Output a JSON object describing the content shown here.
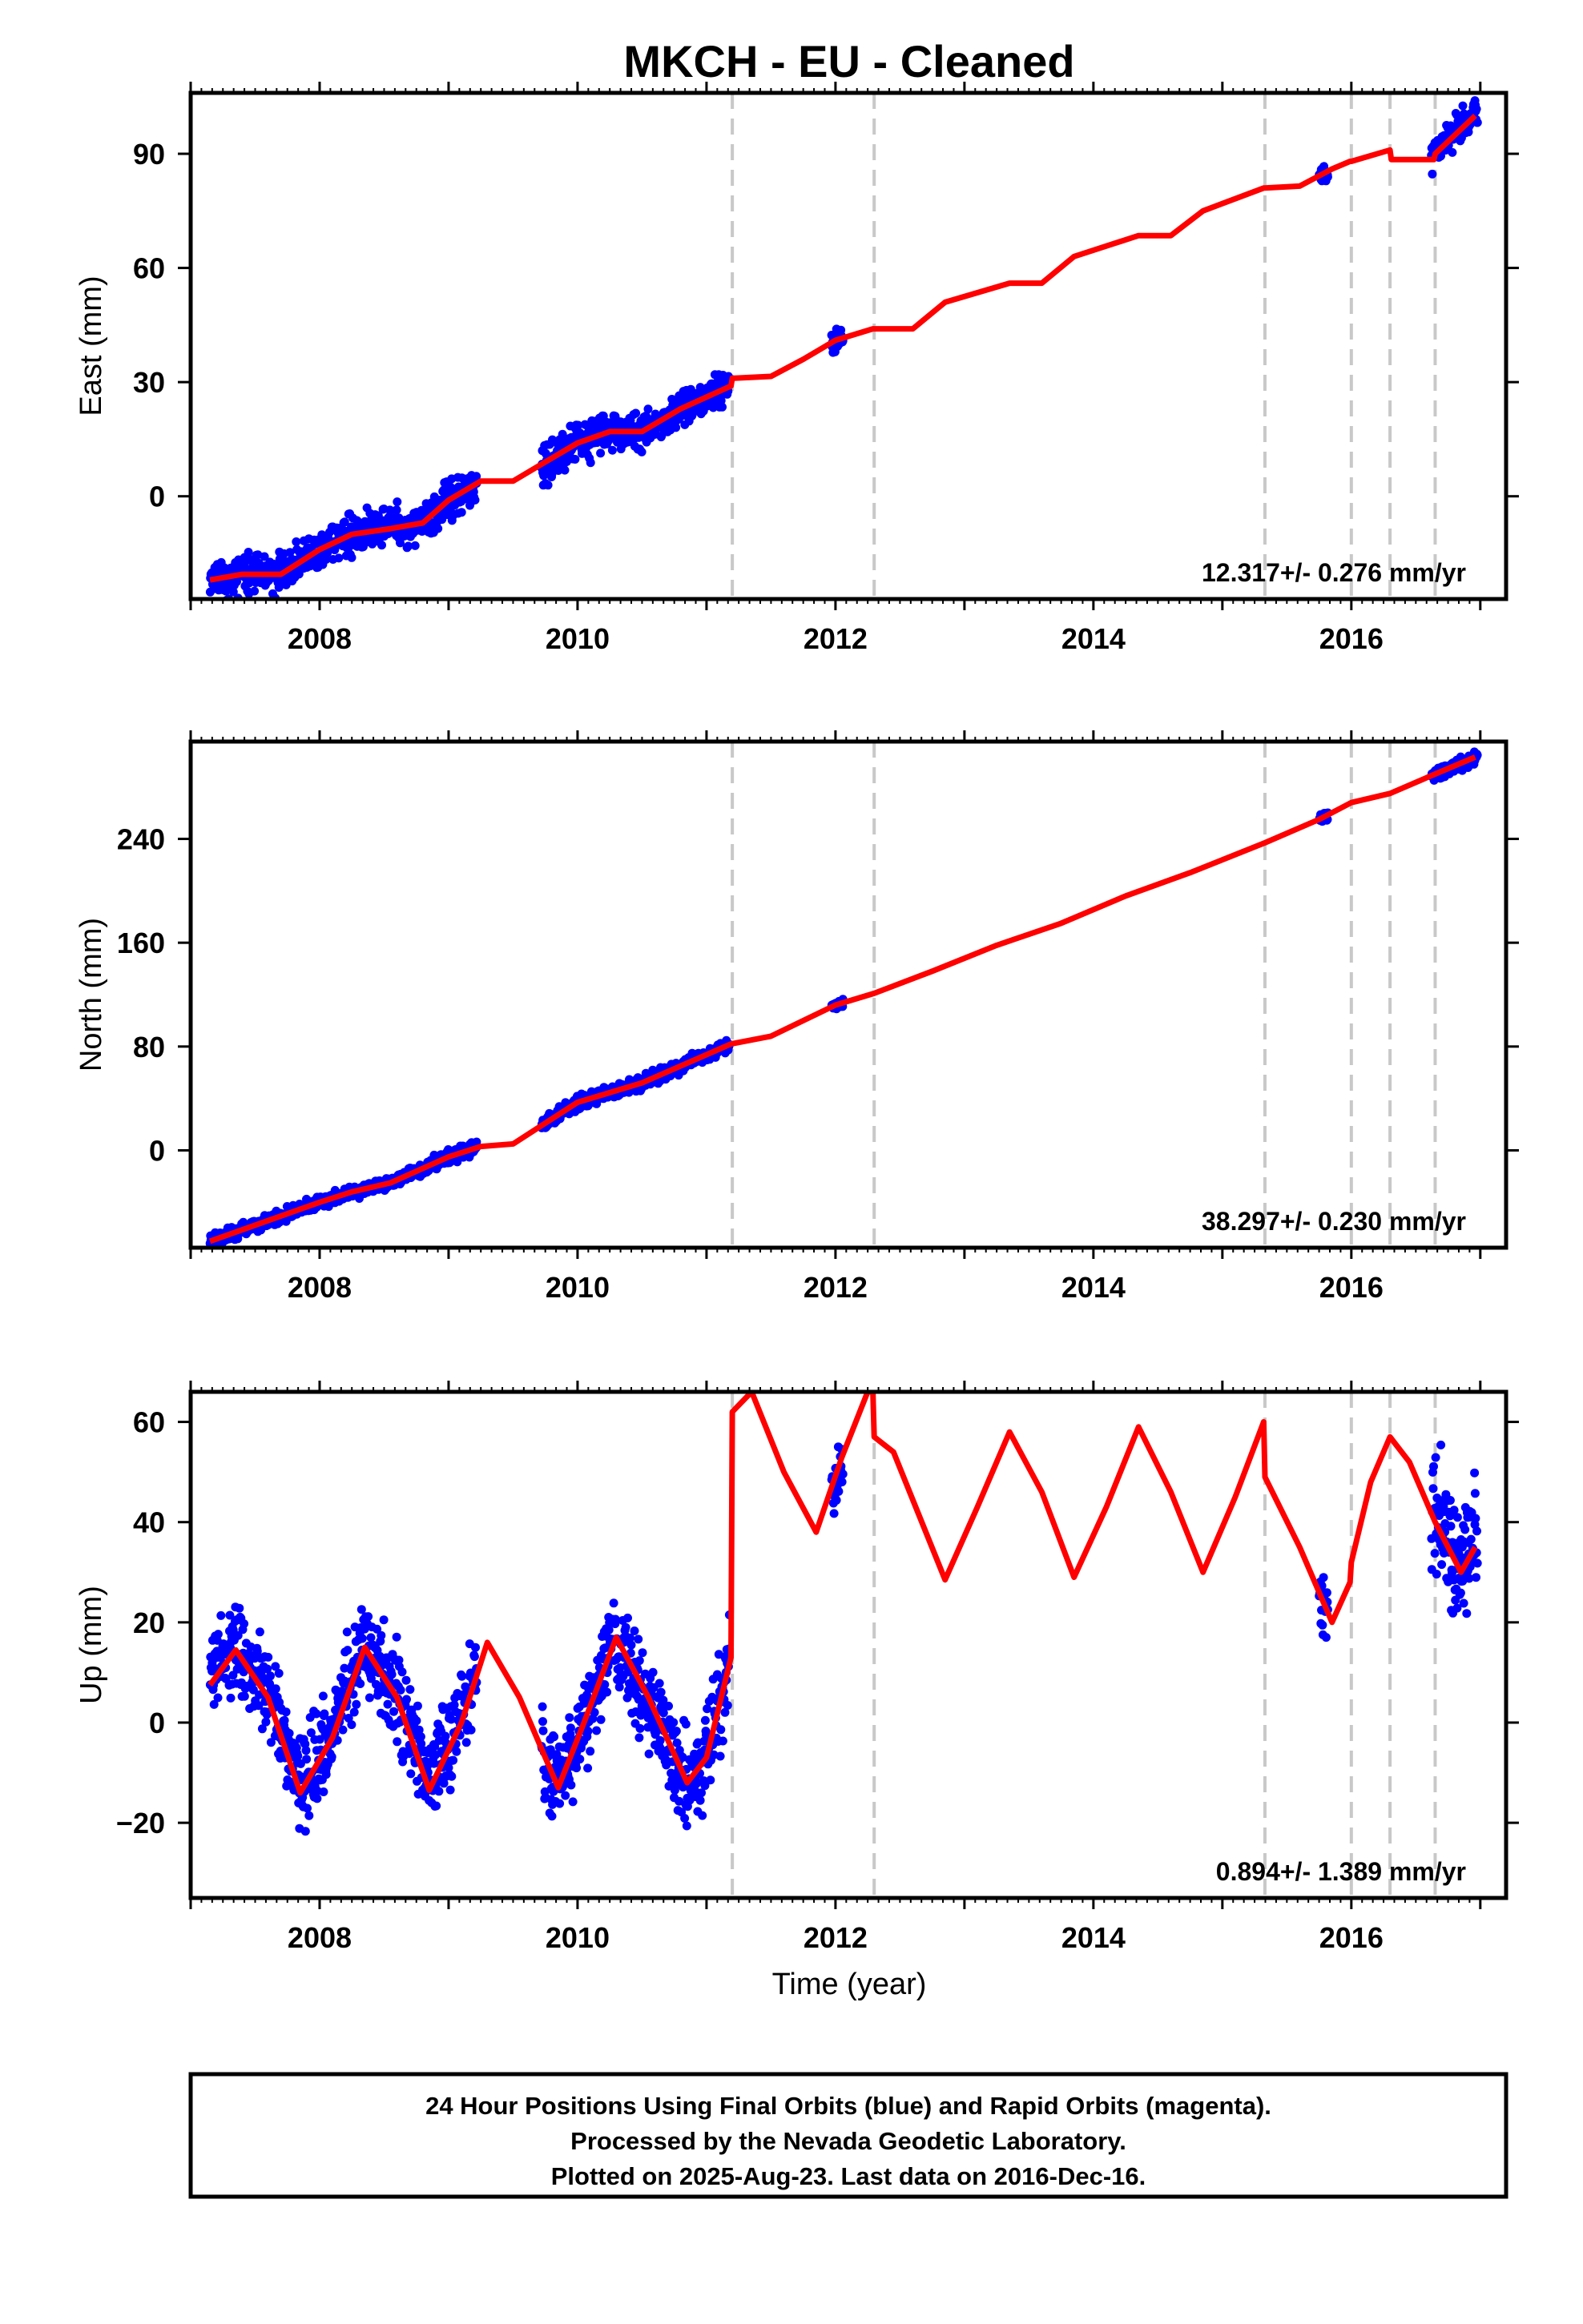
{
  "title": "MKCH  - EU - Cleaned",
  "xlabel": "Time (year)",
  "footer": {
    "line1": "24 Hour Positions Using Final Orbits (blue) and Rapid Orbits (magenta).",
    "line2": "Processed by the Nevada Geodetic Laboratory.",
    "line3": "Plotted on 2025-Aug-23. Last data on 2016-Dec-16."
  },
  "colors": {
    "data": "#0000ff",
    "model": "#ff0000",
    "steps": "#c8c8c8",
    "frame": "#000000"
  },
  "chart_data": [
    {
      "type": "scatter",
      "component": "east",
      "ylabel": "East (mm)",
      "rate_label": "12.317+/- 0.276 mm/yr",
      "xlim": [
        2007.0,
        2017.2
      ],
      "ylim": [
        -27,
        106
      ],
      "x_ticks": [
        2008,
        2010,
        2012,
        2014,
        2016
      ],
      "y_ticks": [
        0,
        30,
        60,
        90
      ],
      "step_lines": [
        2011.2,
        2012.3,
        2015.33,
        2016.0,
        2016.3,
        2016.65
      ],
      "model": [
        [
          2007.15,
          -22
        ],
        [
          2007.4,
          -20.5
        ],
        [
          2007.7,
          -20.5
        ],
        [
          2008.0,
          -14
        ],
        [
          2008.25,
          -10
        ],
        [
          2008.55,
          -8.5
        ],
        [
          2008.8,
          -7
        ],
        [
          2009.0,
          -1
        ],
        [
          2009.25,
          4
        ],
        [
          2009.5,
          4
        ],
        [
          2009.75,
          9
        ],
        [
          2010.0,
          14
        ],
        [
          2010.25,
          17
        ],
        [
          2010.5,
          17
        ],
        [
          2010.8,
          23
        ],
        [
          2011.19,
          29
        ],
        [
          2011.2,
          31
        ],
        [
          2011.5,
          31.5
        ],
        [
          2011.75,
          36
        ],
        [
          2012.0,
          41
        ],
        [
          2012.29,
          44
        ],
        [
          2012.3,
          44
        ],
        [
          2012.6,
          44
        ],
        [
          2012.85,
          51
        ],
        [
          2013.35,
          56
        ],
        [
          2013.6,
          56
        ],
        [
          2013.85,
          63
        ],
        [
          2014.35,
          68.5
        ],
        [
          2014.6,
          68.5
        ],
        [
          2014.85,
          75
        ],
        [
          2015.32,
          81
        ],
        [
          2015.33,
          81
        ],
        [
          2015.6,
          81.5
        ],
        [
          2015.85,
          86
        ],
        [
          2015.99,
          88
        ],
        [
          2016.0,
          88
        ],
        [
          2016.3,
          91
        ],
        [
          2016.31,
          88.5
        ],
        [
          2016.64,
          88.5
        ],
        [
          2016.65,
          90
        ],
        [
          2016.96,
          100
        ]
      ],
      "segments": [
        {
          "x": [
            2007.15,
            2009.22
          ],
          "model_offset": 0,
          "noise": 2.6
        },
        {
          "x": [
            2009.72,
            2010.35
          ],
          "model_offset": 0,
          "noise": 2.4
        },
        {
          "x": [
            2010.35,
            2011.18
          ],
          "model_offset": 0,
          "noise": 2.2
        },
        {
          "x": [
            2011.97,
            2012.06
          ],
          "model_offset": 0,
          "noise": 1.2
        },
        {
          "x": [
            2015.75,
            2015.82
          ],
          "model_offset": 0,
          "noise": 1.5
        },
        {
          "x": [
            2016.62,
            2016.98
          ],
          "model_offset": 1,
          "noise": 2.0
        }
      ]
    },
    {
      "type": "scatter",
      "component": "north",
      "ylabel": "North (mm)",
      "rate_label": "38.297+/- 0.230 mm/yr",
      "xlim": [
        2007.0,
        2017.2
      ],
      "ylim": [
        -75,
        315
      ],
      "x_ticks": [
        2008,
        2010,
        2012,
        2014,
        2016
      ],
      "y_ticks": [
        0,
        80,
        160,
        240
      ],
      "step_lines": [
        2011.2,
        2012.3,
        2015.33,
        2016.0,
        2016.3,
        2016.65
      ],
      "model": [
        [
          2007.15,
          -70
        ],
        [
          2008.0,
          -40
        ],
        [
          2008.25,
          -32
        ],
        [
          2008.55,
          -25
        ],
        [
          2009.0,
          -5
        ],
        [
          2009.25,
          3
        ],
        [
          2009.5,
          5
        ],
        [
          2010.0,
          37
        ],
        [
          2010.5,
          52
        ],
        [
          2011.19,
          82
        ],
        [
          2011.5,
          88
        ],
        [
          2012.0,
          112
        ],
        [
          2012.3,
          121
        ],
        [
          2012.75,
          138
        ],
        [
          2013.25,
          158
        ],
        [
          2013.75,
          175
        ],
        [
          2014.25,
          196
        ],
        [
          2014.75,
          214
        ],
        [
          2015.33,
          237
        ],
        [
          2015.75,
          255
        ],
        [
          2016.0,
          268
        ],
        [
          2016.3,
          275
        ],
        [
          2016.65,
          290
        ],
        [
          2016.96,
          303
        ]
      ],
      "segments": [
        {
          "x": [
            2007.15,
            2009.22
          ],
          "model_offset": 0,
          "noise": 2.5
        },
        {
          "x": [
            2009.72,
            2011.18
          ],
          "model_offset": 0,
          "noise": 2.5
        },
        {
          "x": [
            2011.97,
            2012.06
          ],
          "model_offset": 0,
          "noise": 1.5
        },
        {
          "x": [
            2015.75,
            2015.82
          ],
          "model_offset": 0,
          "noise": 2.0
        },
        {
          "x": [
            2016.62,
            2016.98
          ],
          "model_offset": 0,
          "noise": 2.5
        }
      ]
    },
    {
      "type": "scatter",
      "component": "up",
      "ylabel": "Up (mm)",
      "rate_label": "0.894+/- 1.389 mm/yr",
      "xlim": [
        2007.0,
        2017.2
      ],
      "ylim": [
        -35,
        66
      ],
      "x_ticks": [
        2008,
        2010,
        2012,
        2014,
        2016
      ],
      "y_ticks": [
        -20,
        0,
        20,
        40,
        60
      ],
      "step_lines": [
        2011.2,
        2012.3,
        2015.33,
        2016.0,
        2016.3,
        2016.65
      ],
      "model": [
        [
          2007.15,
          7.5
        ],
        [
          2007.35,
          14.5
        ],
        [
          2007.6,
          5
        ],
        [
          2007.85,
          -14
        ],
        [
          2008.1,
          -3
        ],
        [
          2008.35,
          15
        ],
        [
          2008.6,
          5
        ],
        [
          2008.85,
          -13.5
        ],
        [
          2009.1,
          0
        ],
        [
          2009.3,
          16
        ],
        [
          2009.55,
          5
        ],
        [
          2009.85,
          -13
        ],
        [
          2010.05,
          0
        ],
        [
          2010.3,
          17
        ],
        [
          2010.55,
          5
        ],
        [
          2010.85,
          -12
        ],
        [
          2011.0,
          -7
        ],
        [
          2011.19,
          13
        ],
        [
          2011.2,
          62
        ],
        [
          2011.35,
          66
        ],
        [
          2011.6,
          50
        ],
        [
          2011.85,
          38
        ],
        [
          2012.05,
          53
        ],
        [
          2012.25,
          66
        ],
        [
          2012.29,
          66
        ],
        [
          2012.3,
          57
        ],
        [
          2012.45,
          54
        ],
        [
          2012.85,
          28.5
        ],
        [
          2013.1,
          43
        ],
        [
          2013.35,
          58
        ],
        [
          2013.6,
          46
        ],
        [
          2013.85,
          29
        ],
        [
          2014.1,
          43
        ],
        [
          2014.35,
          59
        ],
        [
          2014.6,
          46
        ],
        [
          2014.85,
          30
        ],
        [
          2015.1,
          45
        ],
        [
          2015.32,
          60
        ],
        [
          2015.33,
          49
        ],
        [
          2015.6,
          35
        ],
        [
          2015.85,
          20
        ],
        [
          2015.99,
          28
        ],
        [
          2016.0,
          32
        ],
        [
          2016.15,
          48
        ],
        [
          2016.3,
          57
        ],
        [
          2016.45,
          52
        ],
        [
          2016.65,
          40
        ],
        [
          2016.85,
          30
        ],
        [
          2016.96,
          35
        ]
      ],
      "segments": [
        {
          "x": [
            2007.15,
            2009.22
          ],
          "model_offset": 1.5,
          "noise": 4.5
        },
        {
          "x": [
            2009.72,
            2011.18
          ],
          "model_offset": 0,
          "noise": 4.5
        },
        {
          "x": [
            2011.97,
            2012.06
          ],
          "model_offset": -2,
          "noise": 2.5
        },
        {
          "x": [
            2015.75,
            2015.82
          ],
          "model_offset": 0,
          "noise": 3.0
        },
        {
          "x": [
            2016.62,
            2016.98
          ],
          "model_offset": 1,
          "noise": 6.0
        }
      ]
    }
  ]
}
